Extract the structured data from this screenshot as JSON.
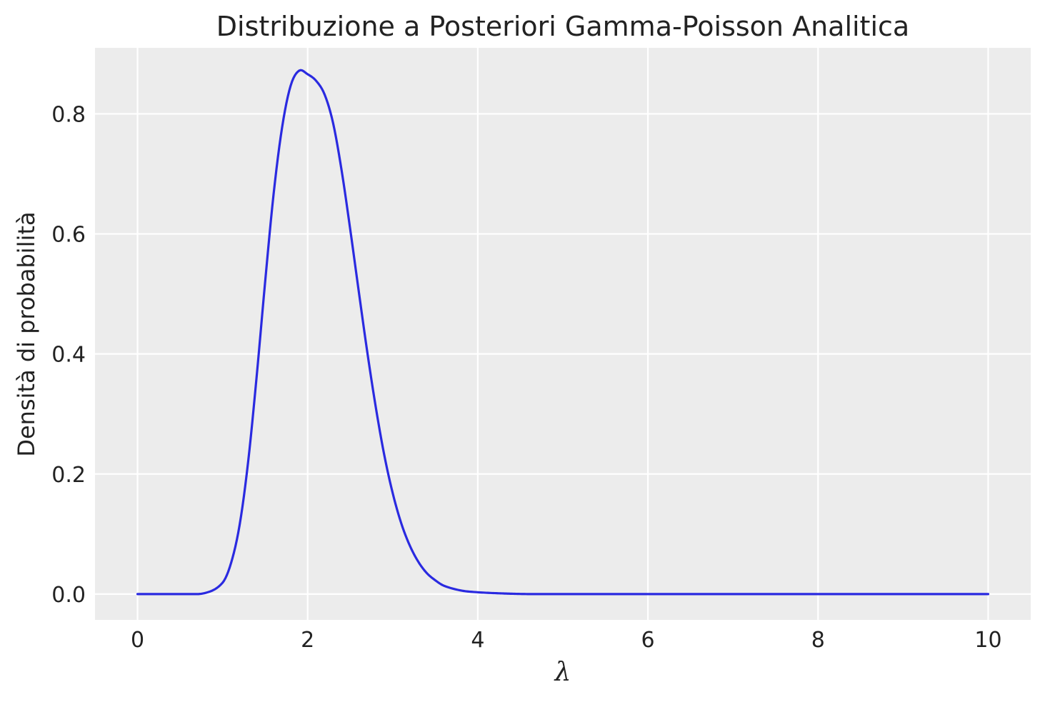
{
  "chart_data": {
    "type": "line",
    "title": "Distribuzione a Posteriori Gamma-Poisson Analitica",
    "xlabel": "λ",
    "ylabel": "Densità di probabilità",
    "xlim": [
      -0.5,
      10.5
    ],
    "ylim": [
      -0.043,
      0.91
    ],
    "x_ticks": [
      0,
      2,
      4,
      6,
      8,
      10
    ],
    "x_tick_labels": [
      "0",
      "2",
      "4",
      "6",
      "8",
      "10"
    ],
    "y_ticks": [
      0.0,
      0.2,
      0.4,
      0.6,
      0.8
    ],
    "y_tick_labels": [
      "0.0",
      "0.2",
      "0.4",
      "0.6",
      "0.8"
    ],
    "grid": true,
    "background_color": "#ececec",
    "line_color": "#2a2ae0",
    "series": [
      {
        "x": [
          0.0,
          0.5,
          0.8,
          1.0,
          1.1,
          1.2,
          1.3,
          1.4,
          1.5,
          1.6,
          1.7,
          1.8,
          1.9,
          2.0,
          2.1,
          2.2,
          2.3,
          2.4,
          2.5,
          2.6,
          2.7,
          2.8,
          2.9,
          3.0,
          3.1,
          3.2,
          3.3,
          3.4,
          3.5,
          3.6,
          3.8,
          4.0,
          4.3,
          4.6,
          5.0,
          6.0,
          7.0,
          8.0,
          9.0,
          10.0
        ],
        "y": [
          0.0,
          0.0,
          0.002,
          0.019,
          0.052,
          0.115,
          0.22,
          0.362,
          0.52,
          0.667,
          0.778,
          0.847,
          0.872,
          0.866,
          0.855,
          0.832,
          0.784,
          0.705,
          0.608,
          0.505,
          0.404,
          0.312,
          0.232,
          0.168,
          0.118,
          0.081,
          0.054,
          0.035,
          0.023,
          0.014,
          0.006,
          0.003,
          0.001,
          0.0,
          0.0,
          0.0,
          0.0,
          0.0,
          0.0,
          0.0
        ]
      }
    ]
  }
}
